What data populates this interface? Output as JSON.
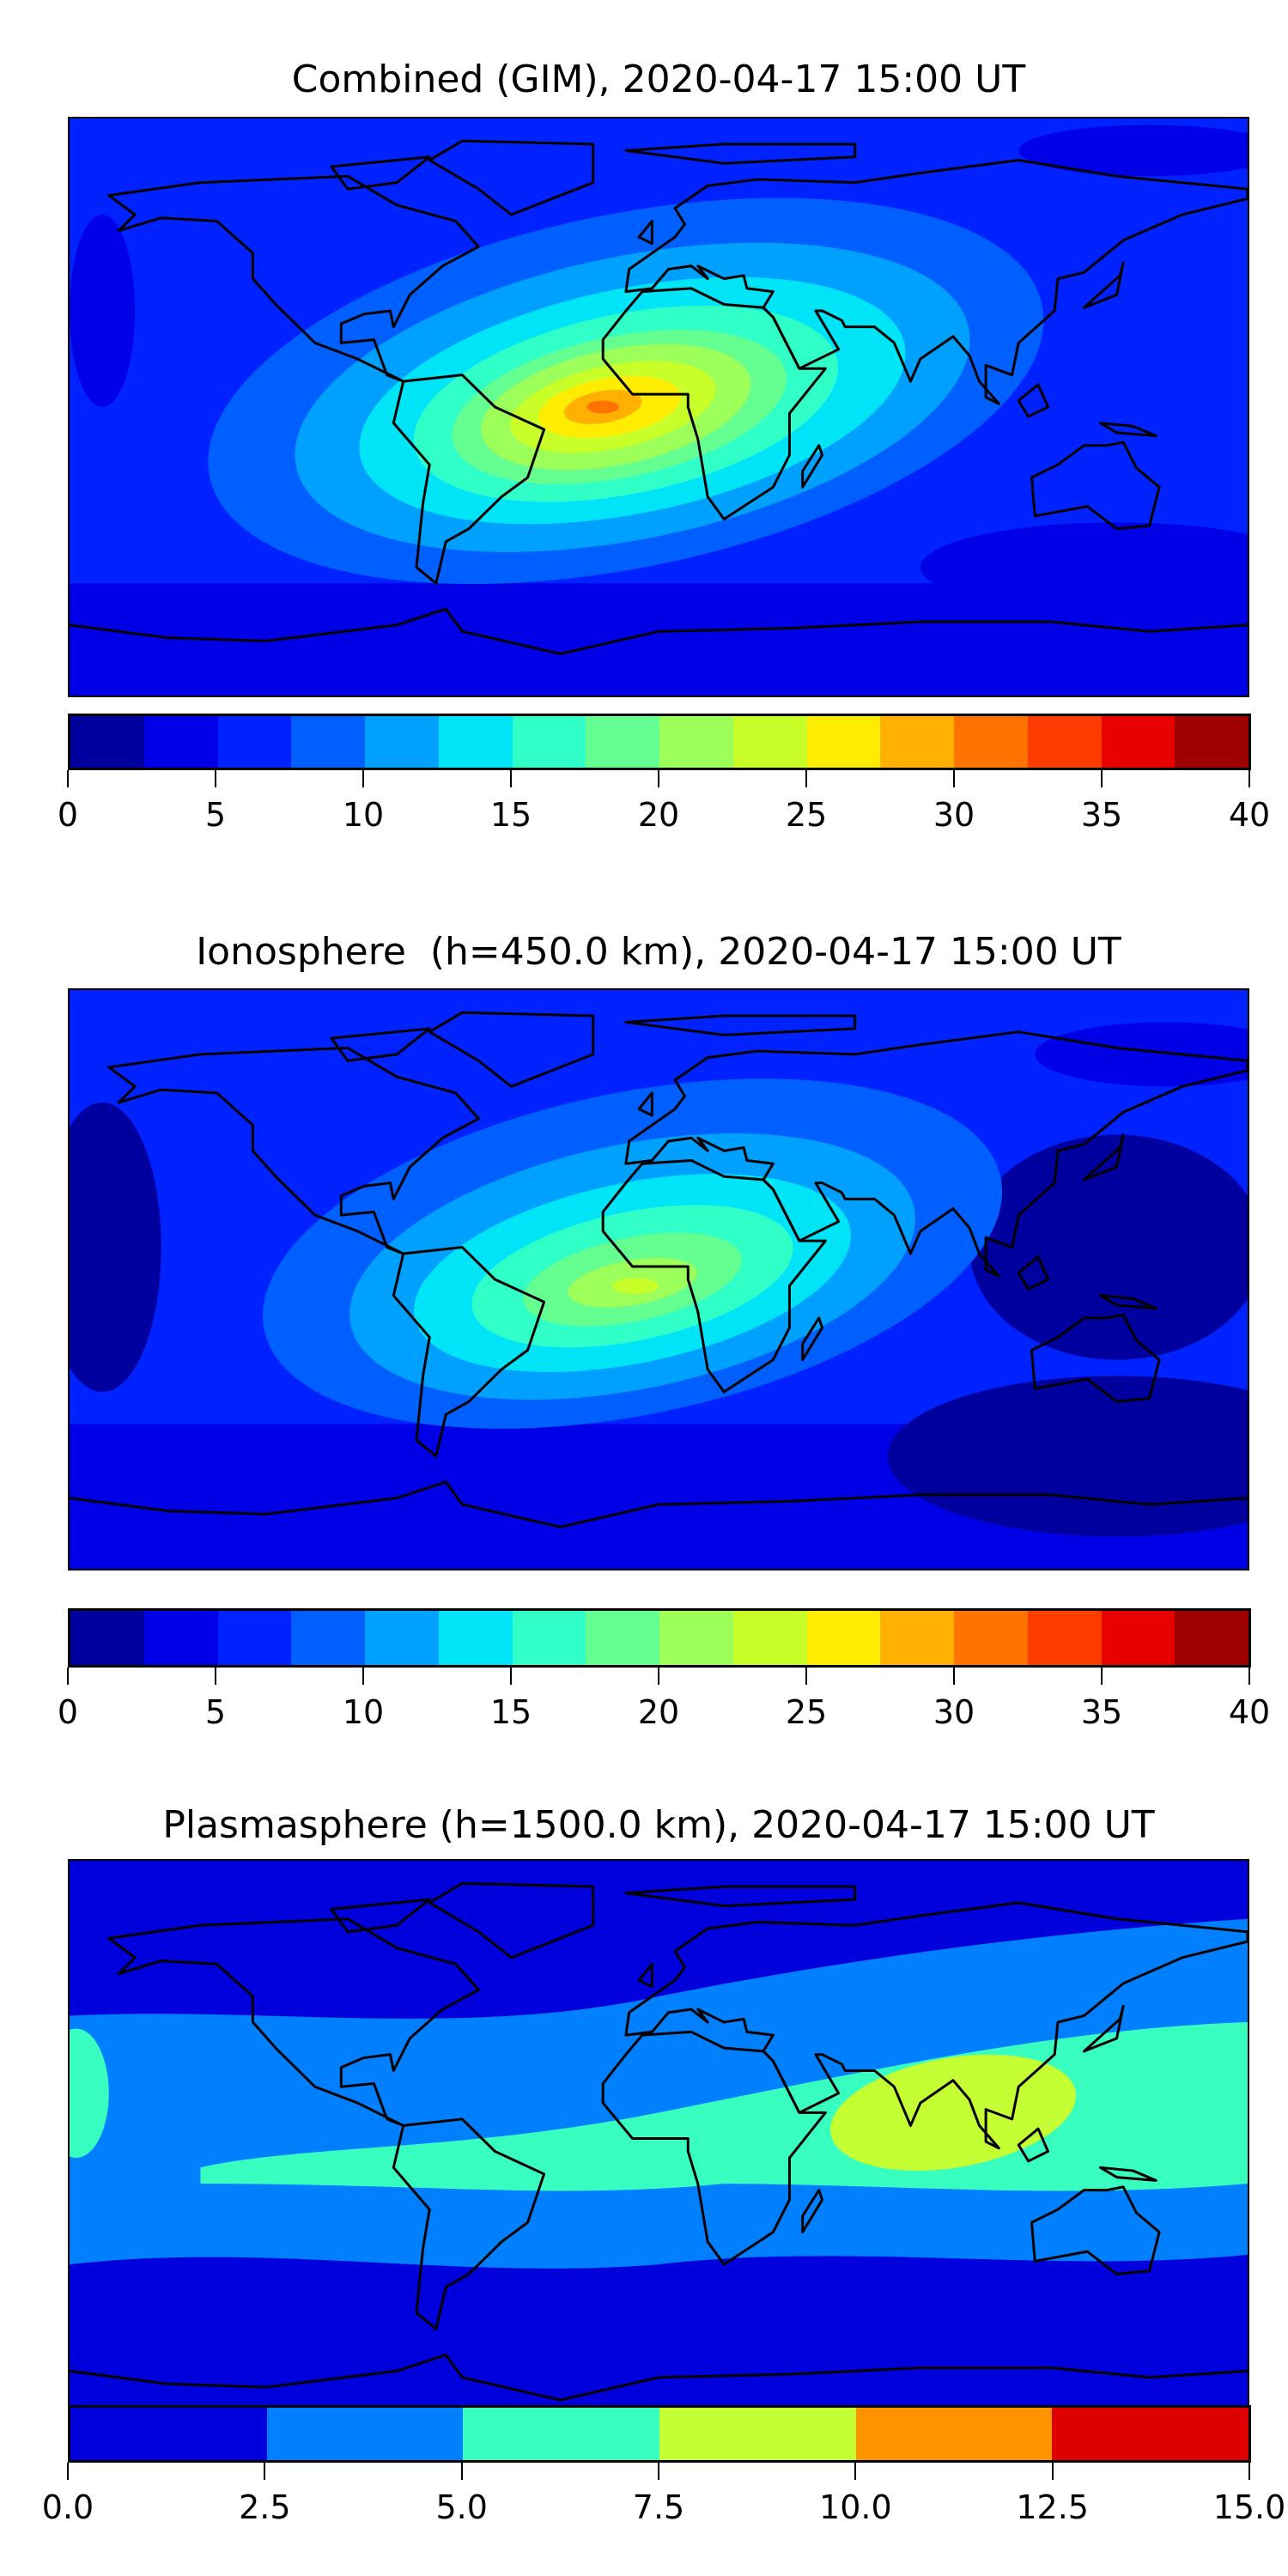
{
  "chart_data": [
    {
      "type": "heatmap",
      "title": "Combined (GIM), 2020-04-17 15:00 UT",
      "projection": "plate-carree-global",
      "colorbar": {
        "levels": [
          0,
          2.5,
          5,
          7.5,
          10,
          12.5,
          15,
          17.5,
          20,
          22.5,
          25,
          27.5,
          30,
          32.5,
          35,
          37.5,
          40
        ],
        "colors": [
          "#00009e",
          "#0000e6",
          "#0022ff",
          "#0060ff",
          "#00a0ff",
          "#00e4f8",
          "#30ffc8",
          "#64ff90",
          "#9cff5a",
          "#c8ff28",
          "#ffec00",
          "#ffb000",
          "#ff7400",
          "#ff3c00",
          "#e60000",
          "#9e0000"
        ],
        "ticks": [
          "0",
          "5",
          "10",
          "15",
          "20",
          "25",
          "30",
          "35",
          "40"
        ],
        "range": [
          0,
          40
        ]
      },
      "peak": {
        "lon": -17,
        "lat": 0,
        "value_range": [
          30,
          32.5
        ]
      }
    },
    {
      "type": "heatmap",
      "title": "Ionosphere  (h=450.0 km), 2020-04-17 15:00 UT",
      "projection": "plate-carree-global",
      "colorbar": {
        "levels": [
          0,
          2.5,
          5,
          7.5,
          10,
          12.5,
          15,
          17.5,
          20,
          22.5,
          25,
          27.5,
          30,
          32.5,
          35,
          37.5,
          40
        ],
        "colors": [
          "#00009e",
          "#0000e6",
          "#0022ff",
          "#0060ff",
          "#00a0ff",
          "#00e4f8",
          "#30ffc8",
          "#64ff90",
          "#9cff5a",
          "#c8ff28",
          "#ffec00",
          "#ffb000",
          "#ff7400",
          "#ff3c00",
          "#e60000",
          "#9e0000"
        ],
        "ticks": [
          "0",
          "5",
          "10",
          "15",
          "20",
          "25",
          "30",
          "35",
          "40"
        ],
        "range": [
          0,
          40
        ]
      },
      "peak": {
        "lon": -5,
        "lat": -2,
        "value_range": [
          22.5,
          25
        ]
      }
    },
    {
      "type": "heatmap",
      "title": "Plasmasphere (h=1500.0 km), 2020-04-17 15:00 UT",
      "projection": "plate-carree-global",
      "colorbar": {
        "levels": [
          0,
          2.5,
          5,
          7.5,
          10,
          12.5,
          15
        ],
        "colors": [
          "#0000dd",
          "#0080ff",
          "#38ffc0",
          "#c4ff34",
          "#ff9400",
          "#de0000"
        ],
        "ticks": [
          "0.0",
          "2.5",
          "5.0",
          "7.5",
          "10.0",
          "12.5",
          "15.0"
        ],
        "range": [
          0,
          15
        ]
      },
      "peak": {
        "lon": 85,
        "lat": 15,
        "value_range": [
          7.5,
          10
        ]
      }
    }
  ]
}
